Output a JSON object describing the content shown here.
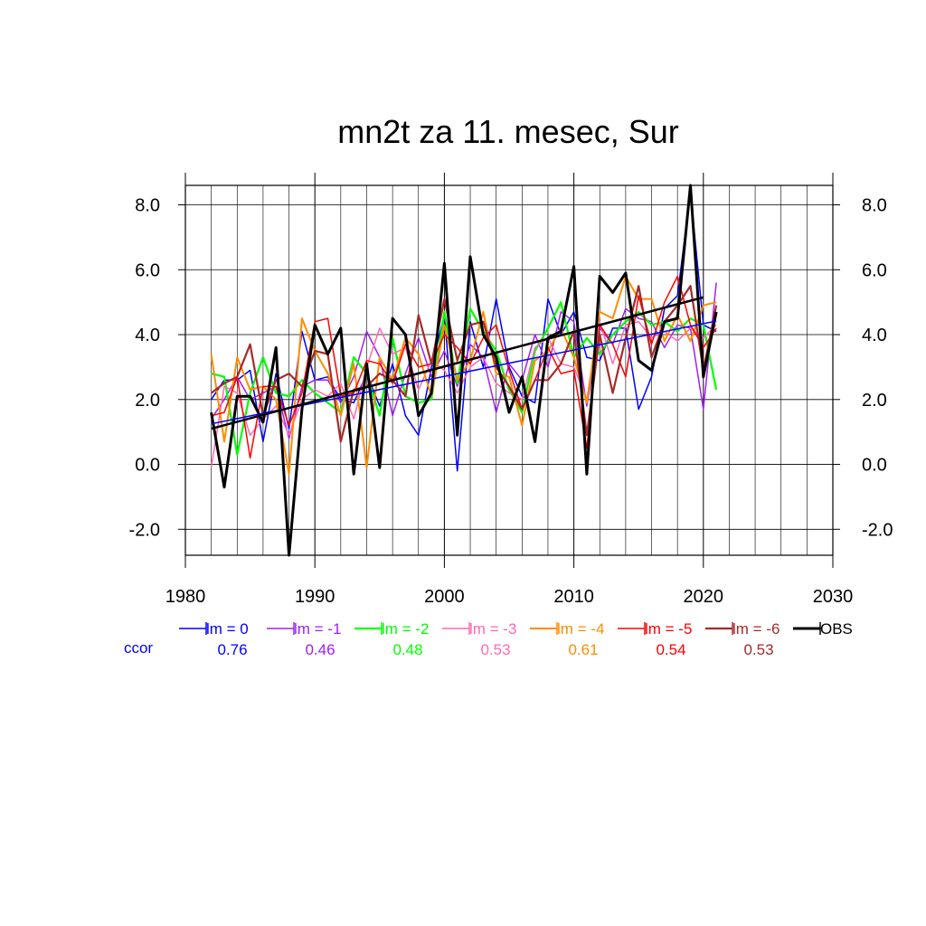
{
  "chart_data": {
    "type": "line",
    "title": "mn2t za 11. mesec, Sur",
    "xlabel": "",
    "ylabel": "",
    "xlim": [
      1980,
      2030
    ],
    "ylim": [
      -2.8,
      8.6
    ],
    "x_ticks": [
      1980,
      1990,
      2000,
      2010,
      2020,
      2030
    ],
    "x_tick_labels": [
      "1980",
      "1990",
      "2000",
      "2010",
      "2020",
      "2030"
    ],
    "y_ticks": [
      -2,
      0,
      2,
      4,
      6,
      8
    ],
    "y_tick_labels": [
      "-2.0",
      "0.0",
      "2.0",
      "4.0",
      "6.0",
      "8.0"
    ],
    "grid": true,
    "legend_position": "bottom",
    "ccor_label": "ccor",
    "years": [
      1982,
      1983,
      1984,
      1985,
      1986,
      1987,
      1988,
      1989,
      1990,
      1991,
      1992,
      1993,
      1994,
      1995,
      1996,
      1997,
      1998,
      1999,
      2000,
      2001,
      2002,
      2003,
      2004,
      2005,
      2006,
      2007,
      2008,
      2009,
      2010,
      2011,
      2012,
      2013,
      2014,
      2015,
      2016,
      2017,
      2018,
      2019,
      2020,
      2021
    ],
    "series": [
      {
        "name": "lm = 0",
        "color": "#0000ff",
        "width": 1.5,
        "ccor": "0.76",
        "values": [
          2.0,
          2.6,
          2.6,
          2.9,
          0.7,
          2.8,
          1.1,
          4.1,
          2.6,
          2.7,
          2.0,
          1.9,
          2.8,
          1.8,
          3.1,
          1.5,
          0.9,
          3.0,
          4.6,
          -0.2,
          4.4,
          3.0,
          5.1,
          3.0,
          2.1,
          1.9,
          5.1,
          4.0,
          4.7,
          3.3,
          3.2,
          4.2,
          4.2,
          1.7,
          2.7,
          4.8,
          5.2,
          8.4,
          4.3,
          4.1
        ]
      },
      {
        "name": "lm = -1",
        "color": "#a020f0",
        "width": 1.5,
        "ccor": "0.46",
        "values": [
          1.4,
          2.0,
          2.7,
          2.0,
          2.2,
          2.4,
          0.8,
          2.4,
          2.6,
          2.6,
          1.9,
          2.7,
          4.1,
          3.3,
          1.5,
          2.8,
          3.9,
          2.7,
          3.5,
          2.4,
          3.7,
          3.3,
          1.6,
          3.1,
          2.6,
          4.0,
          3.0,
          4.7,
          4.4,
          1.8,
          4.2,
          3.7,
          4.8,
          4.5,
          4.4,
          3.6,
          4.3,
          4.2,
          1.7,
          5.6
        ]
      },
      {
        "name": "lm = -2",
        "color": "#00ff00",
        "width": 2.2,
        "ccor": "0.48",
        "values": [
          2.8,
          2.7,
          0.3,
          2.2,
          3.3,
          2.2,
          2.1,
          2.6,
          2.2,
          1.9,
          1.6,
          3.3,
          2.8,
          1.5,
          3.9,
          2.1,
          1.9,
          2.0,
          4.7,
          2.5,
          4.8,
          4.1,
          3.5,
          2.3,
          1.6,
          3.5,
          4.2,
          5.0,
          3.3,
          3.9,
          3.4,
          4.0,
          4.4,
          4.7,
          4.3,
          4.4,
          4.1,
          4.5,
          4.3,
          2.3
        ]
      },
      {
        "name": "lm = -3",
        "color": "#ff69b4",
        "width": 1.5,
        "ccor": "0.53",
        "values": [
          -0.1,
          2.4,
          2.2,
          0.9,
          1.4,
          1.8,
          0.9,
          2.0,
          2.3,
          2.1,
          2.5,
          1.4,
          3.0,
          4.2,
          3.4,
          3.6,
          2.3,
          3.2,
          2.9,
          2.2,
          3.0,
          3.3,
          2.5,
          2.2,
          2.0,
          3.6,
          3.9,
          3.1,
          3.0,
          2.0,
          4.4,
          3.1,
          4.3,
          4.4,
          3.9,
          4.1,
          3.8,
          4.2,
          3.9,
          4.3
        ]
      },
      {
        "name": "lm = -4",
        "color": "#ff8c00",
        "width": 2,
        "ccor": "0.61",
        "values": [
          3.4,
          0.7,
          3.3,
          2.3,
          2.4,
          2.0,
          -0.3,
          4.5,
          3.5,
          2.8,
          1.5,
          3.1,
          -0.1,
          3.3,
          2.6,
          3.9,
          3.4,
          2.1,
          4.3,
          2.6,
          3.2,
          4.7,
          2.8,
          2.7,
          1.2,
          3.2,
          3.5,
          4.2,
          3.3,
          1.9,
          4.7,
          4.5,
          5.8,
          5.1,
          5.1,
          3.8,
          4.6,
          3.8,
          4.9,
          5.0
        ]
      },
      {
        "name": "lm = -5",
        "color": "#ff0000",
        "width": 1.5,
        "ccor": "0.54",
        "values": [
          1.5,
          1.6,
          2.7,
          0.2,
          2.4,
          2.4,
          1.2,
          2.2,
          4.4,
          4.5,
          2.1,
          2.2,
          3.2,
          3.1,
          2.5,
          3.7,
          3.0,
          3.1,
          4.0,
          3.6,
          3.1,
          3.9,
          4.3,
          2.9,
          1.7,
          2.6,
          3.6,
          2.8,
          2.9,
          0.5,
          4.3,
          3.7,
          2.7,
          5.2,
          3.7,
          5.0,
          5.8,
          4.3,
          3.6,
          4.2
        ]
      },
      {
        "name": "lm = -6",
        "color": "#a52a2a",
        "width": 2.2,
        "ccor": "0.53",
        "values": [
          2.2,
          2.5,
          2.7,
          3.7,
          1.5,
          2.6,
          2.8,
          2.4,
          3.5,
          3.4,
          0.7,
          2.3,
          2.4,
          2.8,
          2.6,
          2.1,
          4.6,
          3.1,
          5.1,
          3.2,
          4.3,
          4.4,
          3.0,
          2.4,
          1.7,
          2.6,
          2.6,
          3.1,
          4.1,
          0.9,
          4.0,
          2.2,
          3.9,
          5.5,
          3.3,
          4.4,
          4.9,
          5.5,
          2.9,
          4.9
        ]
      },
      {
        "name": "OBS",
        "color": "#000000",
        "width": 3,
        "ccor": "",
        "values": [
          1.6,
          -0.7,
          2.1,
          2.1,
          1.3,
          3.6,
          -2.8,
          1.7,
          4.3,
          3.4,
          4.2,
          -0.3,
          3.1,
          -0.1,
          4.5,
          4.0,
          1.5,
          2.2,
          6.2,
          0.9,
          6.4,
          4.0,
          3.3,
          1.6,
          2.7,
          0.7,
          3.9,
          4.1,
          6.1,
          -0.3,
          5.8,
          5.3,
          5.9,
          3.2,
          2.9,
          4.4,
          4.5,
          8.6,
          2.7,
          4.7
        ]
      }
    ],
    "trend_lines": [
      {
        "name": "lm = 0 trend",
        "color": "#0000ff",
        "width": 1.5,
        "x": [
          1982,
          2021
        ],
        "y": [
          1.25,
          4.42
        ]
      },
      {
        "name": "OBS trend",
        "color": "#000000",
        "width": 2.5,
        "x": [
          1982,
          2020
        ],
        "y": [
          1.1,
          5.15
        ]
      }
    ]
  }
}
